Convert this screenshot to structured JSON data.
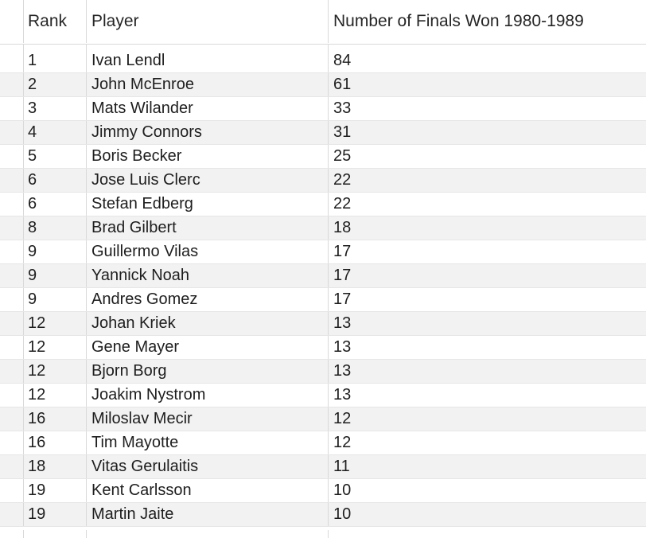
{
  "headers": {
    "rank": "Rank",
    "player": "Player",
    "wins": "Number of Finals Won 1980-1989"
  },
  "rows": [
    {
      "rank": "1",
      "player": "Ivan Lendl",
      "wins": "84"
    },
    {
      "rank": "2",
      "player": "John McEnroe",
      "wins": "61"
    },
    {
      "rank": "3",
      "player": "Mats Wilander",
      "wins": "33"
    },
    {
      "rank": "4",
      "player": "Jimmy Connors",
      "wins": "31"
    },
    {
      "rank": "5",
      "player": "Boris Becker",
      "wins": "25"
    },
    {
      "rank": "6",
      "player": "Jose Luis Clerc",
      "wins": "22"
    },
    {
      "rank": "6",
      "player": "Stefan Edberg",
      "wins": "22"
    },
    {
      "rank": "8",
      "player": "Brad Gilbert",
      "wins": "18"
    },
    {
      "rank": "9",
      "player": "Guillermo Vilas",
      "wins": "17"
    },
    {
      "rank": "9",
      "player": "Yannick Noah",
      "wins": "17"
    },
    {
      "rank": "9",
      "player": "Andres Gomez",
      "wins": "17"
    },
    {
      "rank": "12",
      "player": "Johan Kriek",
      "wins": "13"
    },
    {
      "rank": "12",
      "player": "Gene Mayer",
      "wins": "13"
    },
    {
      "rank": "12",
      "player": "Bjorn Borg",
      "wins": "13"
    },
    {
      "rank": "12",
      "player": "Joakim Nystrom",
      "wins": "13"
    },
    {
      "rank": "16",
      "player": "Miloslav Mecir",
      "wins": "12"
    },
    {
      "rank": "16",
      "player": "Tim Mayotte",
      "wins": "12"
    },
    {
      "rank": "18",
      "player": "Vitas Gerulaitis",
      "wins": "11"
    },
    {
      "rank": "19",
      "player": "Kent Carlsson",
      "wins": "10"
    },
    {
      "rank": "19",
      "player": "Martin Jaite",
      "wins": "10"
    }
  ]
}
